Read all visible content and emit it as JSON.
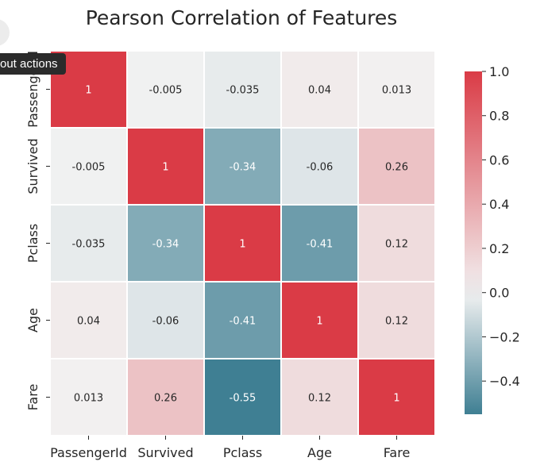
{
  "overlay": {
    "tooltip_text": "out actions"
  },
  "chart_data": {
    "type": "heatmap",
    "title": "Pearson Correlation of Features",
    "x_labels": [
      "PassengerId",
      "Survived",
      "Pclass",
      "Age",
      "Fare"
    ],
    "y_labels": [
      "PassengerId",
      "Survived",
      "Pclass",
      "Age",
      "Fare"
    ],
    "values": [
      [
        1,
        -0.005,
        -0.035,
        0.04,
        0.013
      ],
      [
        -0.005,
        1,
        -0.34,
        -0.06,
        0.26
      ],
      [
        -0.035,
        -0.34,
        1,
        -0.41,
        0.12
      ],
      [
        0.04,
        -0.06,
        -0.41,
        1,
        0.12
      ],
      [
        0.013,
        0.26,
        -0.55,
        0.12,
        1
      ]
    ],
    "cell_labels": [
      [
        "1",
        "-0.005",
        "-0.035",
        "0.04",
        "0.013"
      ],
      [
        "-0.005",
        "1",
        "-0.34",
        "-0.06",
        "0.26"
      ],
      [
        "-0.035",
        "-0.34",
        "1",
        "-0.41",
        "0.12"
      ],
      [
        "0.04",
        "-0.06",
        "-0.41",
        "1",
        "0.12"
      ],
      [
        "0.013",
        "0.26",
        "-0.55",
        "0.12",
        "1"
      ]
    ],
    "colorbar": {
      "min": -0.55,
      "max": 1.0,
      "ticks": [
        1.0,
        0.8,
        0.6,
        0.4,
        0.2,
        0.0,
        -0.2,
        -0.4
      ],
      "tick_labels": [
        "1.0",
        "0.8",
        "0.6",
        "0.4",
        "0.2",
        "0.0",
        "−0.2",
        "−0.4"
      ],
      "placement": "right"
    },
    "colors": {
      "negative": "#3f7f93",
      "neutral": "#f2f2f2",
      "positive": "#da3b46",
      "grid_line": "#ffffff"
    }
  }
}
